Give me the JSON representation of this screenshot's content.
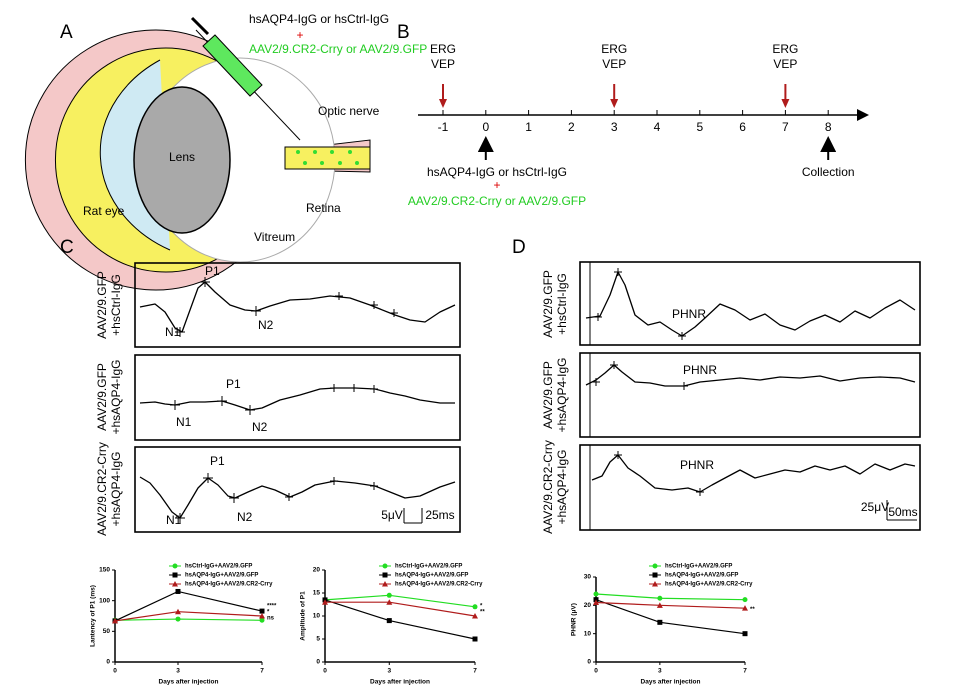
{
  "panel_a": {
    "label": "A",
    "injection_lines": [
      "hsAQP4-IgG or hsCtrl-IgG",
      "+",
      "AAV2/9.CR2-Crry or AAV2/9.GFP"
    ],
    "optic_nerve": "Optic nerve",
    "lens": "Lens",
    "rat_eye": "Rat eye",
    "retina": "Retina",
    "vitreum": "Vitreum"
  },
  "panel_b": {
    "label": "B",
    "ticks": [
      -1,
      0,
      1,
      2,
      3,
      4,
      5,
      6,
      7,
      8
    ],
    "erg": {
      "days": [
        -1,
        3,
        7
      ],
      "lines": [
        "ERG",
        "VEP"
      ]
    },
    "injection": {
      "day": 0,
      "lines": [
        "hsAQP4-IgG or hsCtrl-IgG",
        "+",
        "AAV2/9.CR2-Crry or AAV2/9.GFP"
      ]
    },
    "collection": {
      "day": 8,
      "label": "Collection"
    }
  },
  "panel_c": {
    "label": "C",
    "rows": [
      {
        "lines": [
          "AAV2/9.GFP",
          "+hsCtrl-IgG"
        ],
        "peaks": [
          "P1",
          "N1",
          "N2"
        ]
      },
      {
        "lines": [
          "AAV2/9.GFP",
          "+hsAQP4-IgG"
        ],
        "peaks": [
          "P1",
          "N1",
          "N2"
        ]
      },
      {
        "lines": [
          "AAV2/9.CR2-Crry",
          "+hsAQP4-IgG"
        ],
        "peaks": [
          "P1",
          "N1",
          "N2"
        ]
      }
    ],
    "scale": [
      "5μV",
      "25ms"
    ]
  },
  "panel_d": {
    "label": "D",
    "rows": [
      {
        "lines": [
          "AAV2/9.GFP",
          "+hsCtrl-IgG"
        ],
        "peak": "PHNR"
      },
      {
        "lines": [
          "AAV2/9.GFP",
          "+hsAQP4-IgG"
        ],
        "peak": "PHNR"
      },
      {
        "lines": [
          "AAV2/9.CR2-Crry",
          "+hsAQP4-IgG"
        ],
        "peak": "PHNR"
      }
    ],
    "scale": [
      "25μV",
      "50ms"
    ]
  },
  "chart_data": [
    {
      "type": "line",
      "y_label": "Lantency of P1 (ms)",
      "x_label": "Days after injection",
      "x": [
        0,
        3,
        7
      ],
      "xlim": [
        0,
        7
      ],
      "xticks": [
        0,
        3,
        7
      ],
      "ylim": [
        0,
        150
      ],
      "yticks": [
        0,
        50,
        100,
        150
      ],
      "series": [
        {
          "name": "hsCtrl-IgG+AAV2/9.GFP",
          "color": "#22dd22",
          "marker": "circle",
          "values": [
            68,
            70,
            68
          ]
        },
        {
          "name": "hsAQP4-IgG+AAV2/9.GFP",
          "color": "#000000",
          "marker": "square",
          "values": [
            67,
            115,
            83
          ]
        },
        {
          "name": "hsAQP4-IgG+AAV2/9.CR2-Crry",
          "color": "#b01c1c",
          "marker": "triangle",
          "values": [
            67,
            82,
            75
          ]
        }
      ],
      "annotations": [
        "****",
        "*",
        "ns"
      ]
    },
    {
      "type": "line",
      "y_label": "Amplitude of P1",
      "x_label": "Days after injection",
      "x": [
        0,
        3,
        7
      ],
      "xlim": [
        0,
        7
      ],
      "xticks": [
        0,
        3,
        7
      ],
      "ylim": [
        0,
        20
      ],
      "yticks": [
        0,
        5,
        10,
        15,
        20
      ],
      "series": [
        {
          "name": "hsCtrl-IgG+AAV2/9.GFP",
          "color": "#22dd22",
          "marker": "circle",
          "values": [
            13.5,
            14.5,
            12
          ]
        },
        {
          "name": "hsAQP4-IgG+AAV2/9.GFP",
          "color": "#000000",
          "marker": "square",
          "values": [
            13.5,
            9,
            5
          ]
        },
        {
          "name": "hsAQP4-IgG+AAV2/9.CR2-Crry",
          "color": "#b01c1c",
          "marker": "triangle",
          "values": [
            13,
            13,
            10
          ]
        }
      ],
      "annotations": [
        "*",
        "**"
      ]
    },
    {
      "type": "line",
      "y_label": "PHNR (μV)",
      "x_label": "Days after injection",
      "x": [
        0,
        3,
        7
      ],
      "xlim": [
        0,
        7
      ],
      "xticks": [
        0,
        3,
        7
      ],
      "ylim": [
        0,
        30
      ],
      "yticks": [
        0,
        10,
        20,
        30
      ],
      "series": [
        {
          "name": "hsCtrl-IgG+AAV2/9.GFP",
          "color": "#22dd22",
          "marker": "circle",
          "values": [
            24,
            22.5,
            22
          ]
        },
        {
          "name": "hsAQP4-IgG+AAV2/9.GFP",
          "color": "#000000",
          "marker": "square",
          "values": [
            22,
            14,
            10
          ]
        },
        {
          "name": "hsAQP4-IgG+AAV2/9.CR2-Crry",
          "color": "#b01c1c",
          "marker": "triangle",
          "values": [
            21,
            20,
            19
          ]
        }
      ],
      "annotations": [
        "**"
      ]
    }
  ]
}
